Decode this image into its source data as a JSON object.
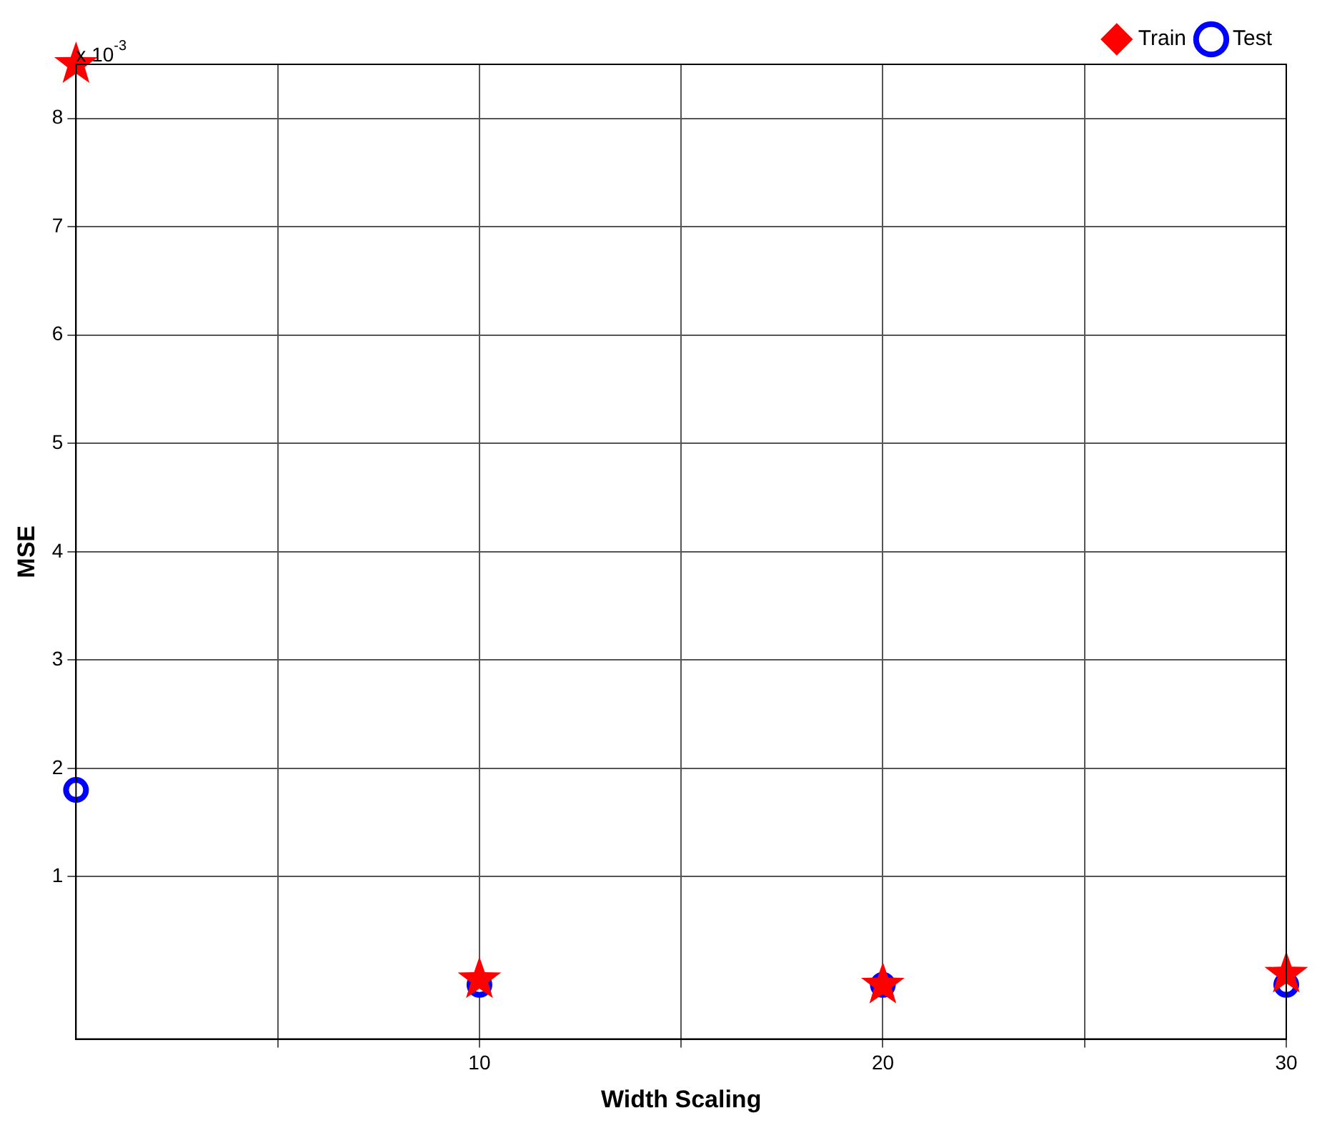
{
  "chart_data": {
    "type": "scatter",
    "xlabel": "Width Scaling",
    "ylabel": "MSE",
    "annotations": [
      "x 10$^{-3}$"
    ],
    "x": [
      0,
      10,
      20,
      30
    ],
    "series": [
      {
        "name": "Train",
        "color": "#ff0000",
        "marker": "star",
        "values": [
          8.5,
          0.05,
          0.0,
          0.1
        ]
      },
      {
        "name": "Test",
        "color": "#0000ff",
        "marker": "circle",
        "values": [
          1.8,
          0.0,
          0.0,
          0.0
        ]
      }
    ],
    "xlim": [
      0,
      30
    ],
    "xticks": [
      {
        "value": 5,
        "label": null
      },
      10,
      {
        "value": 15,
        "label": null
      },
      20,
      {
        "value": 25,
        "label": null
      },
      30
    ],
    "ylim": [
      -0.5,
      8.5
    ],
    "yticks": [
      1,
      2,
      3,
      4,
      5,
      6,
      7,
      8
    ],
    "grid": true,
    "legend": "top right"
  }
}
